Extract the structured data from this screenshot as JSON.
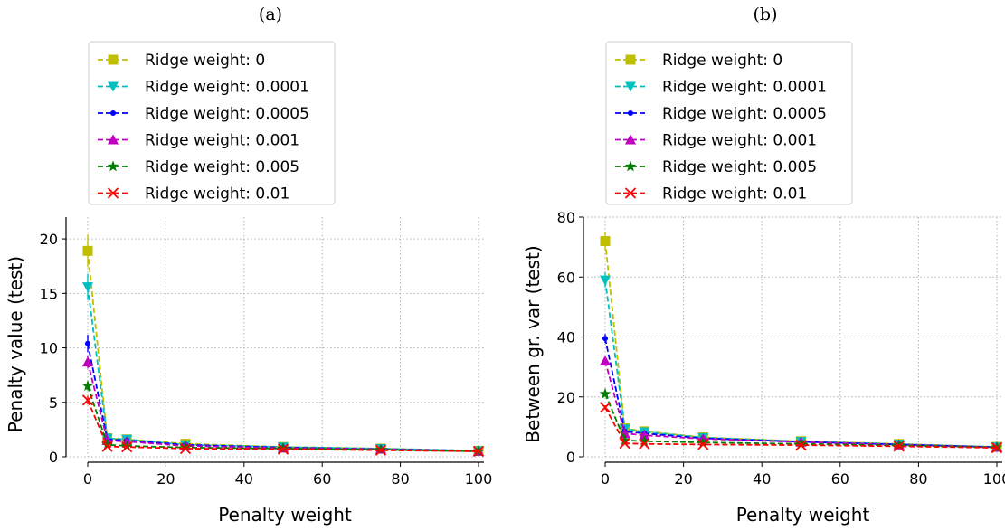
{
  "chart_data": [
    {
      "type": "line",
      "title": "(a)",
      "xlabel": "Penalty weight",
      "ylabel": "Penalty value (test)",
      "xlim": [
        -3,
        105
      ],
      "ylim": [
        0,
        22
      ],
      "xticks": [
        0,
        20,
        40,
        60,
        80,
        100
      ],
      "yticks": [
        0,
        5,
        10,
        15,
        20
      ],
      "grid": true,
      "legend_position": "above plot, left",
      "x": [
        0,
        5,
        10,
        25,
        50,
        75,
        100
      ],
      "series": [
        {
          "name": "Ridge weight: 0",
          "color": "#bfbf00",
          "marker": "square",
          "values": [
            18.9,
            1.7,
            1.6,
            1.2,
            0.9,
            0.75,
            0.55
          ],
          "error": [
            1.5,
            0.2,
            0.2,
            0.1,
            0.1,
            0.1,
            0.1
          ]
        },
        {
          "name": "Ridge weight: 0.0001",
          "color": "#00bfbf",
          "marker": "triangle-down",
          "values": [
            15.6,
            1.7,
            1.6,
            1.1,
            0.9,
            0.75,
            0.55
          ],
          "error": [
            1.2,
            0.2,
            0.2,
            0.1,
            0.1,
            0.1,
            0.1
          ]
        },
        {
          "name": "Ridge weight: 0.0005",
          "color": "#0000ff",
          "marker": "dot",
          "values": [
            10.4,
            1.6,
            1.5,
            1.1,
            0.85,
            0.7,
            0.55
          ],
          "error": [
            0.8,
            0.2,
            0.2,
            0.1,
            0.1,
            0.1,
            0.1
          ]
        },
        {
          "name": "Ridge weight: 0.001",
          "color": "#bf00bf",
          "marker": "triangle-up",
          "values": [
            8.7,
            1.5,
            1.4,
            1.0,
            0.8,
            0.7,
            0.5
          ],
          "error": [
            0.6,
            0.2,
            0.2,
            0.1,
            0.1,
            0.1,
            0.1
          ]
        },
        {
          "name": "Ridge weight: 0.005",
          "color": "#008000",
          "marker": "star",
          "values": [
            6.5,
            1.1,
            1.0,
            0.85,
            0.75,
            0.65,
            0.5
          ],
          "error": [
            0.4,
            0.1,
            0.1,
            0.1,
            0.1,
            0.1,
            0.1
          ]
        },
        {
          "name": "Ridge weight: 0.01",
          "color": "#ff0000",
          "marker": "x",
          "values": [
            5.2,
            0.95,
            0.9,
            0.75,
            0.7,
            0.6,
            0.5
          ],
          "error": [
            0.4,
            0.1,
            0.1,
            0.1,
            0.1,
            0.1,
            0.1
          ]
        }
      ]
    },
    {
      "type": "line",
      "title": "(b)",
      "xlabel": "Penalty weight",
      "ylabel": "Between gr. var (test)",
      "xlim": [
        -3,
        105
      ],
      "ylim": [
        0,
        80
      ],
      "xticks": [
        0,
        20,
        40,
        60,
        80,
        100
      ],
      "yticks": [
        0,
        20,
        40,
        60,
        80
      ],
      "grid": true,
      "legend_position": "above plot, left",
      "x": [
        0,
        5,
        10,
        25,
        50,
        75,
        100
      ],
      "series": [
        {
          "name": "Ridge weight: 0",
          "color": "#bfbf00",
          "marker": "square",
          "values": [
            72,
            9.5,
            8.5,
            6.5,
            5.2,
            4.3,
            3.3
          ],
          "error": [
            3,
            0.6,
            0.5,
            0.4,
            0.3,
            0.3,
            0.3
          ]
        },
        {
          "name": "Ridge weight: 0.0001",
          "color": "#00bfbf",
          "marker": "triangle-down",
          "values": [
            59,
            9.3,
            8.3,
            6.4,
            5.1,
            4.2,
            3.3
          ],
          "error": [
            2.5,
            0.6,
            0.5,
            0.4,
            0.3,
            0.3,
            0.3
          ]
        },
        {
          "name": "Ridge weight: 0.0005",
          "color": "#0000ff",
          "marker": "dot",
          "values": [
            39.5,
            8.5,
            7.8,
            6.2,
            5.0,
            4.1,
            3.2
          ],
          "error": [
            1.5,
            0.5,
            0.5,
            0.4,
            0.3,
            0.3,
            0.3
          ]
        },
        {
          "name": "Ridge weight: 0.001",
          "color": "#bf00bf",
          "marker": "triangle-up",
          "values": [
            32,
            7.8,
            7.2,
            6.0,
            4.9,
            4.0,
            3.2
          ],
          "error": [
            1.2,
            0.5,
            0.5,
            0.4,
            0.3,
            0.3,
            0.3
          ]
        },
        {
          "name": "Ridge weight: 0.005",
          "color": "#008000",
          "marker": "star",
          "values": [
            21,
            5.5,
            5.2,
            4.8,
            4.3,
            3.8,
            3.1
          ],
          "error": [
            0.8,
            0.4,
            0.4,
            0.3,
            0.3,
            0.3,
            0.3
          ]
        },
        {
          "name": "Ridge weight: 0.01",
          "color": "#ff0000",
          "marker": "x",
          "values": [
            16.5,
            4.5,
            4.3,
            4.1,
            3.9,
            3.5,
            3.0
          ],
          "error": [
            0.7,
            0.3,
            0.3,
            0.3,
            0.3,
            0.3,
            0.3
          ]
        }
      ]
    }
  ]
}
